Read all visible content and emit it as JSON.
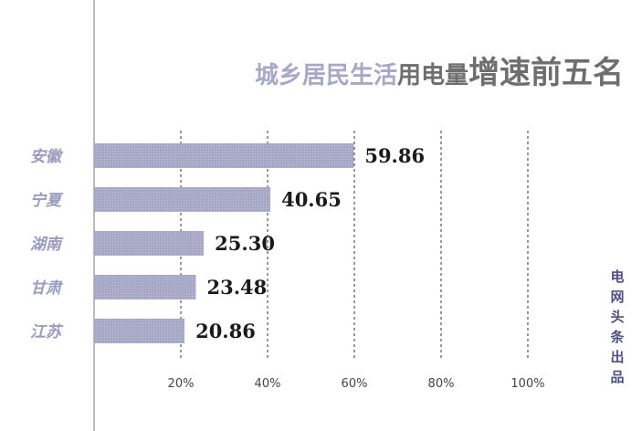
{
  "title_parts": {
    "part1": "城乡居民生活",
    "part2": "用电量",
    "part3": "增速前五名"
  },
  "credit_chars": [
    "电",
    "网",
    "头",
    "条",
    "出",
    "品"
  ],
  "colors": {
    "bar": "#a6a8c6",
    "title_light": "#a6a8c6",
    "title_dark": "#6e6e6e",
    "category_label": "#9a9cbd",
    "value_label": "#1a1a1a",
    "credit": "#4f5082"
  },
  "chart_data": {
    "type": "bar",
    "orientation": "horizontal",
    "categories": [
      "安徽",
      "宁夏",
      "湖南",
      "甘肃",
      "江苏"
    ],
    "values": [
      59.86,
      40.65,
      25.3,
      23.48,
      20.86
    ],
    "value_labels": [
      "59.86",
      "40.65",
      "25.30",
      "23.48",
      "20.86"
    ],
    "x_ticks": [
      {
        "value": 20,
        "label": "20%"
      },
      {
        "value": 40,
        "label": "40%"
      },
      {
        "value": 60,
        "label": "60%"
      },
      {
        "value": 80,
        "label": "80%"
      },
      {
        "value": 100,
        "label": "100%"
      }
    ],
    "xlim": [
      0,
      100
    ],
    "grid": "vertical-dashed",
    "title": "城乡居民生活用电量增速前五名"
  }
}
